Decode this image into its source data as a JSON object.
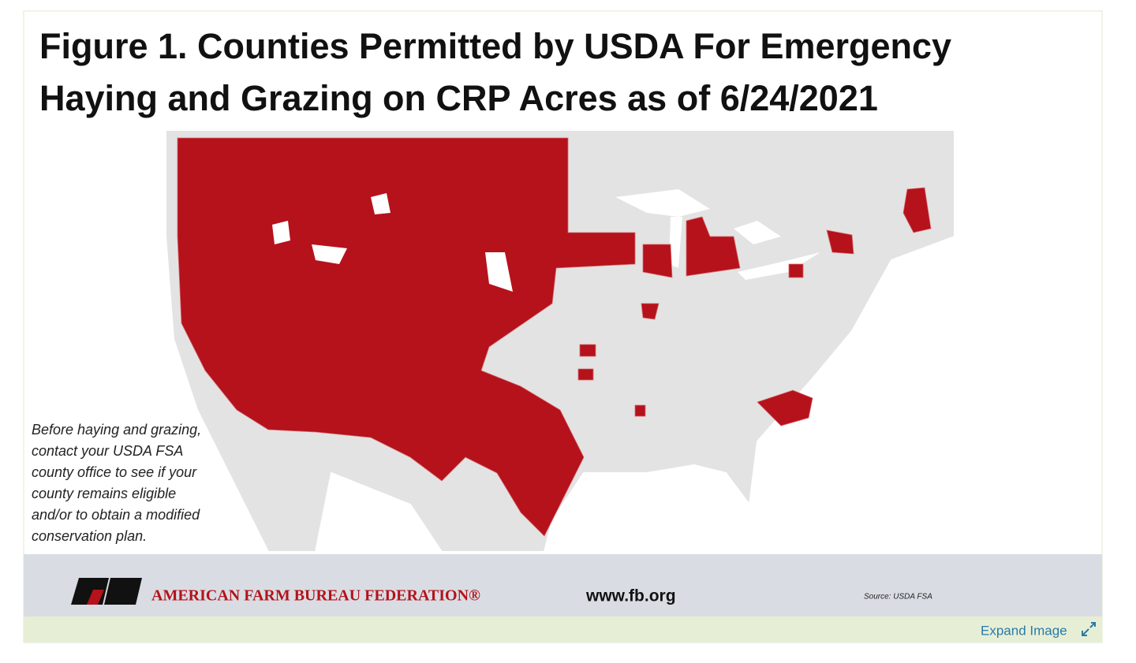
{
  "figure": {
    "title_lines": [
      "Figure 1. Counties Permitted by USDA For Emergency",
      "Haying and Grazing on CRP Acres as of 6/24/2021"
    ],
    "note_lines": [
      "Before haying and grazing,",
      "contact your USDA FSA",
      "county office to see if your",
      "county remains eligible",
      "and/or to obtain a modified",
      "conservation plan."
    ],
    "organization": "AMERICAN FARM BUREAU FEDERATION®",
    "website": "www.fb.org",
    "source": "Source: USDA FSA"
  },
  "expand_link": "Expand Image"
}
